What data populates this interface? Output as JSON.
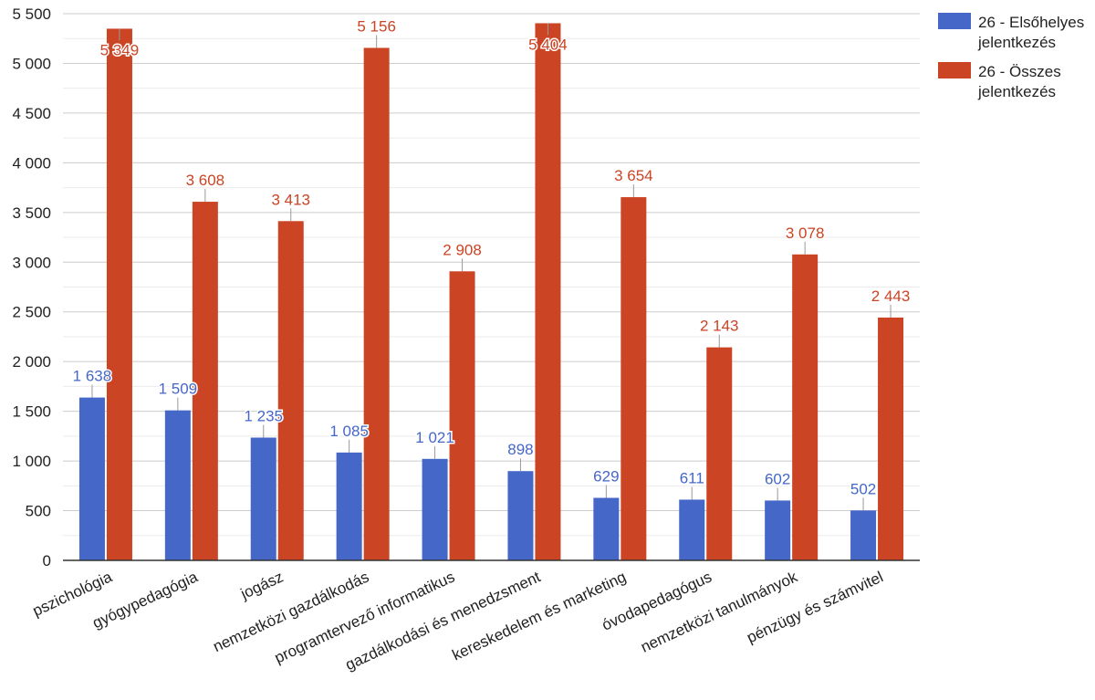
{
  "chart_data": {
    "type": "bar",
    "title": "",
    "xlabel": "",
    "ylabel": "",
    "ylim": [
      0,
      5500
    ],
    "yticks": [
      0,
      500,
      1000,
      1500,
      2000,
      2500,
      3000,
      3500,
      4000,
      4500,
      5000,
      5500
    ],
    "ytick_labels": [
      "0",
      "500",
      "1 000",
      "1 500",
      "2 000",
      "2 500",
      "3 000",
      "3 500",
      "4 000",
      "4 500",
      "5 000",
      "5 500"
    ],
    "grid": true,
    "legend_position": "top-right",
    "categories": [
      "pszichológia",
      "gyógypedagógia",
      "jogász",
      "nemzetközi gazdálkodás",
      "programtervező informatikus",
      "gazdálkodási és menedzsment",
      "kereskedelem és marketing",
      "óvodapedagógus",
      "nemzetközi tanulmányok",
      "pénzügy és számvitel"
    ],
    "series": [
      {
        "name": "26 - Elsőhelyes jelentkezés",
        "legend_lines": [
          "26 - Elsőhelyes",
          "jelentkezés"
        ],
        "color": "#4567c8",
        "values": [
          1638,
          1509,
          1235,
          1085,
          1021,
          898,
          629,
          611,
          602,
          502
        ],
        "labels": [
          "1 638",
          "1 509",
          "1 235",
          "1 085",
          "1 021",
          "898",
          "629",
          "611",
          "602",
          "502"
        ]
      },
      {
        "name": "26 - Összes jelentkezés",
        "legend_lines": [
          "26 - Összes",
          "jelentkezés"
        ],
        "color": "#cb4424",
        "values": [
          5349,
          3608,
          3413,
          5156,
          2908,
          5404,
          3654,
          2143,
          3078,
          2443
        ],
        "labels": [
          "5 349",
          "3 608",
          "3 413",
          "5 156",
          "2 908",
          "5 404",
          "3 654",
          "2 143",
          "3 078",
          "2 443"
        ]
      }
    ]
  }
}
